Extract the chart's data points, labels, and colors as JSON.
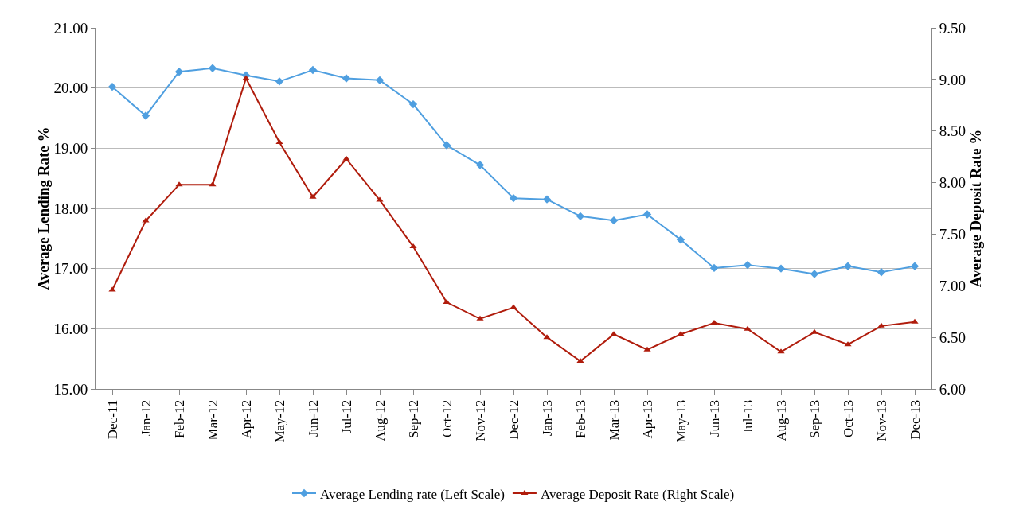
{
  "chart_data": {
    "type": "line",
    "ylabel": "Average Lending Rate %",
    "y2label": "Average Deposit Rate %",
    "categories": [
      "Dec-11",
      "Jan-12",
      "Feb-12",
      "Mar-12",
      "Apr-12",
      "May-12",
      "Jun-12",
      "Jul-12",
      "Aug-12",
      "Sep-12",
      "Oct-12",
      "Nov-12",
      "Dec-12",
      "Jan-13",
      "Feb-13",
      "Mar-13",
      "Apr-13",
      "May-13",
      "Jun-13",
      "Jul-13",
      "Aug-13",
      "Sep-13",
      "Oct-13",
      "Nov-13",
      "Dec-13"
    ],
    "series": [
      {
        "name": "Average Lending rate (Left Scale)",
        "color": "#4f9fe0",
        "marker": "diamond",
        "values": [
          20.02,
          19.54,
          20.27,
          20.33,
          20.21,
          20.11,
          20.3,
          20.16,
          20.13,
          19.73,
          19.05,
          18.72,
          18.17,
          18.15,
          17.87,
          17.8,
          17.9,
          17.48,
          17.01,
          17.06,
          17.0,
          16.91,
          17.04,
          16.94,
          17.04
        ]
      },
      {
        "name": "Average Deposit Rate (Right Scale)",
        "color": "#b01c0c",
        "marker": "triangle",
        "axis": "y2",
        "values": [
          6.96,
          7.63,
          7.98,
          7.98,
          9.01,
          8.39,
          7.86,
          8.23,
          7.83,
          7.38,
          6.84,
          6.68,
          6.79,
          6.5,
          6.27,
          6.53,
          6.38,
          6.53,
          6.64,
          6.58,
          6.36,
          6.55,
          6.43,
          6.61,
          6.65
        ]
      }
    ],
    "ylim": [
      15,
      21
    ],
    "yticks": [
      {
        "value": 15,
        "label": "15.00"
      },
      {
        "value": 16,
        "label": "16.00"
      },
      {
        "value": 17,
        "label": "17.00"
      },
      {
        "value": 18,
        "label": "18.00"
      },
      {
        "value": 19,
        "label": "19.00"
      },
      {
        "value": 20,
        "label": "20.00"
      },
      {
        "value": 21,
        "label": "21.00"
      }
    ],
    "y2lim": [
      6,
      9.5
    ],
    "y2ticks": [
      {
        "value": 6,
        "label": "6.00"
      },
      {
        "value": 6.5,
        "label": "6.50"
      },
      {
        "value": 7,
        "label": "7.00"
      },
      {
        "value": 7.5,
        "label": "7.50"
      },
      {
        "value": 8,
        "label": "8.00"
      },
      {
        "value": 8.5,
        "label": "8.50"
      },
      {
        "value": 9,
        "label": "9.00"
      },
      {
        "value": 9.5,
        "label": "9.50"
      }
    ],
    "grid": "y",
    "legend": "bottom",
    "line_style": "solid"
  }
}
